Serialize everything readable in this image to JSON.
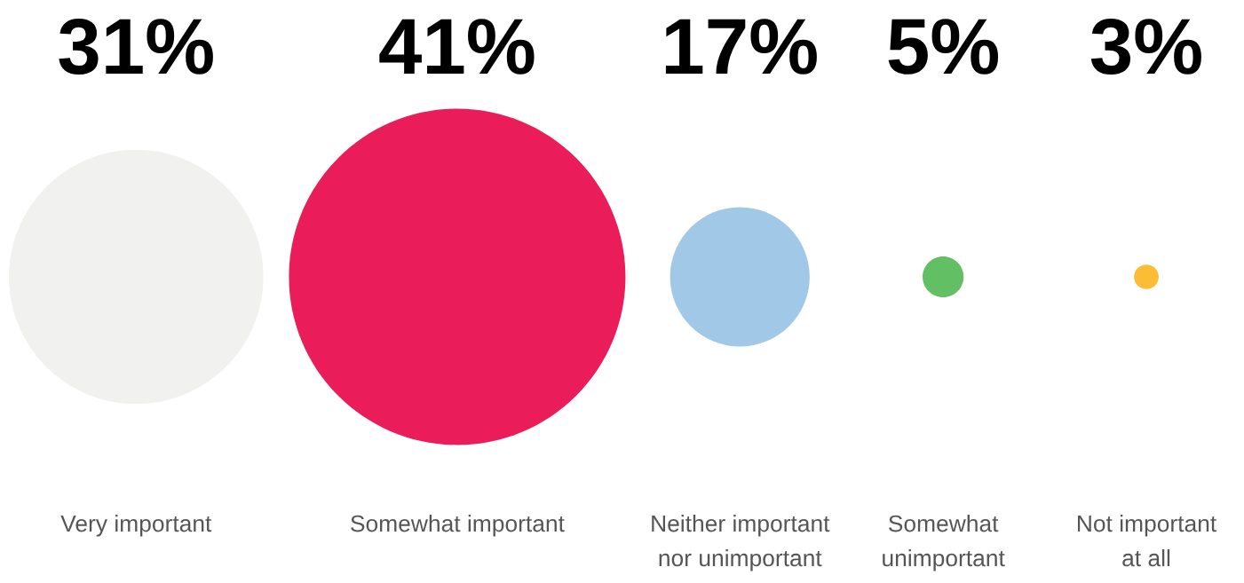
{
  "chart_data": {
    "type": "other",
    "categories": [
      "Very important",
      "Somewhat important",
      "Neither important\nnor unimportant",
      "Somewhat\nunimportant",
      "Not important\nat all"
    ],
    "values": [
      31,
      41,
      17,
      5,
      3
    ],
    "value_labels": [
      "31%",
      "41%",
      "17%",
      "5%",
      "3%"
    ],
    "colors": [
      "#f1f1f0",
      "#eb1c5a",
      "#a1c8e6",
      "#63bf63",
      "#fbbc36"
    ]
  }
}
